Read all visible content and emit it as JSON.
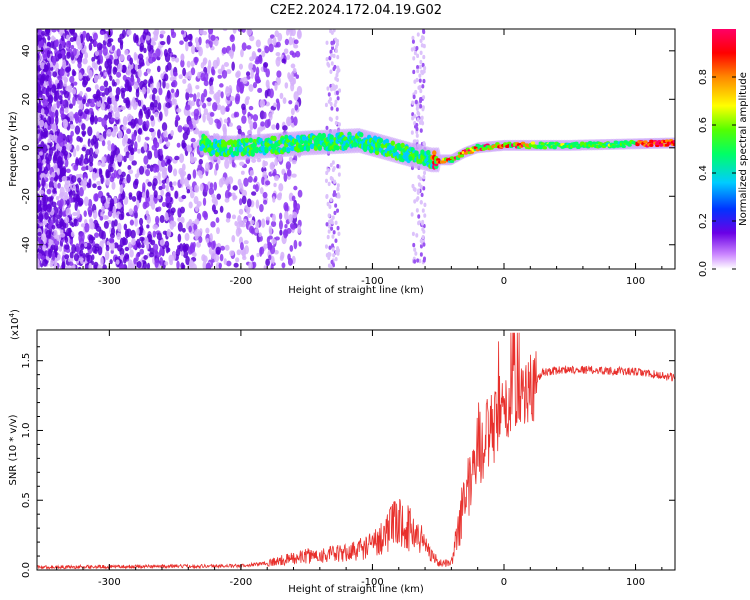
{
  "title": "C2E2.2024.172.04.19.G02",
  "colors": {
    "snr_line": "#e8302c",
    "axis": "#000000"
  },
  "chart_data": [
    {
      "type": "heatmap",
      "name": "spectrogram",
      "xlabel": "Height of straight line (km)",
      "ylabel": "Frequency (Hz)",
      "xlim": [
        -355,
        130
      ],
      "ylim": [
        -50,
        49
      ],
      "xticks": [
        "-300",
        "-200",
        "-100",
        "0",
        "100"
      ],
      "xtick_values": [
        -300,
        -200,
        -100,
        0,
        100
      ],
      "yticks": [
        "40",
        "20",
        "0",
        "-20",
        "-40"
      ],
      "ytick_values": [
        40,
        20,
        0,
        -20,
        -40
      ],
      "colorbar": {
        "label": "Normalized spectral amplitude",
        "range": [
          0,
          1
        ],
        "ticks": [
          "0.0",
          "0.2",
          "0.4",
          "0.6",
          "0.8"
        ],
        "tick_values": [
          0.0,
          0.2,
          0.4,
          0.6,
          0.8
        ]
      },
      "ridge": {
        "description_points_km_hz": [
          [
            -225,
            0
          ],
          [
            -200,
            0
          ],
          [
            -150,
            2
          ],
          [
            -110,
            3
          ],
          [
            -90,
            0
          ],
          [
            -70,
            -3
          ],
          [
            -55,
            -5
          ],
          [
            -40,
            -5
          ],
          [
            -30,
            -2
          ],
          [
            -20,
            0
          ],
          [
            0,
            1
          ],
          [
            50,
            1
          ],
          [
            130,
            2
          ]
        ],
        "peak_amplitude": 0.95
      }
    },
    {
      "type": "line",
      "name": "snr",
      "xlabel": "Height of straight line (km)",
      "ylabel": "SNR (10 * v/v)",
      "yscale_label": "(x10",
      "yscale_exp": "4",
      "xlim": [
        -355,
        130
      ],
      "ylim": [
        0,
        1.72
      ],
      "xticks": [
        "-300",
        "-200",
        "-100",
        "0",
        "100"
      ],
      "xtick_values": [
        -300,
        -200,
        -100,
        0,
        100
      ],
      "yticks": [
        "0.0",
        "0.5",
        "1.0",
        "1.5"
      ],
      "ytick_values": [
        0.0,
        0.5,
        1.0,
        1.5
      ],
      "envelope_km_value": [
        [
          -355,
          0.02
        ],
        [
          -200,
          0.03
        ],
        [
          -180,
          0.05
        ],
        [
          -150,
          0.1
        ],
        [
          -120,
          0.12
        ],
        [
          -100,
          0.18
        ],
        [
          -80,
          0.35
        ],
        [
          -65,
          0.25
        ],
        [
          -50,
          0.05
        ],
        [
          -40,
          0.05
        ],
        [
          -30,
          0.5
        ],
        [
          -20,
          0.85
        ],
        [
          -10,
          1.0
        ],
        [
          0,
          1.1
        ],
        [
          10,
          1.25
        ],
        [
          20,
          1.3
        ],
        [
          30,
          1.42
        ],
        [
          50,
          1.44
        ],
        [
          100,
          1.42
        ],
        [
          130,
          1.38
        ]
      ]
    }
  ]
}
